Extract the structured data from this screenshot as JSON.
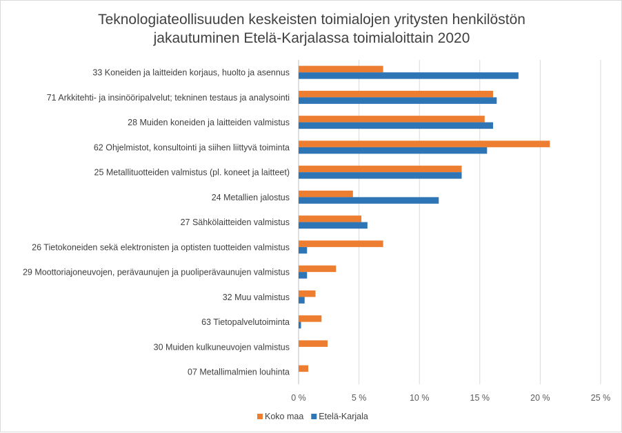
{
  "chart_data": {
    "type": "bar",
    "orientation": "horizontal",
    "title_line1": "Teknologiateollisuuden keskeisten toimialojen yritysten henkilöstön",
    "title_line2": "jakautuminen Etelä-Karjalassa toimialoittain 2020",
    "categories": [
      "33 Koneiden ja laitteiden korjaus, huolto ja asennus",
      "71 Arkkitehti- ja insinööripalvelut; tekninen testaus ja analysointi",
      "28 Muiden koneiden ja laitteiden valmistus",
      "62 Ohjelmistot, konsultointi ja siihen liittyvä toiminta",
      "25 Metallituotteiden valmistus (pl. koneet ja laitteet)",
      "24 Metallien jalostus",
      "27 Sähkölaitteiden valmistus",
      "26 Tietokoneiden sekä elektronisten ja optisten tuotteiden valmistus",
      "29 Moottoriajoneuvojen, perävaunujen ja puoliperävaunujen valmistus",
      "32 Muu valmistus",
      "63 Tietopalvelutoiminta",
      "30 Muiden kulkuneuvojen valmistus",
      "07 Metallimalmien louhinta"
    ],
    "series": [
      {
        "name": "Koko maa",
        "color": "#ED7D31",
        "values": [
          7.0,
          16.1,
          15.4,
          20.8,
          13.5,
          4.5,
          5.2,
          7.0,
          3.1,
          1.4,
          1.9,
          2.4,
          0.8
        ]
      },
      {
        "name": "Etelä-Karjala",
        "color": "#2E75B6",
        "values": [
          18.2,
          16.4,
          16.1,
          15.6,
          13.5,
          11.6,
          5.7,
          0.7,
          0.7,
          0.5,
          0.2,
          0.0,
          0.0
        ]
      }
    ],
    "xticks": [
      "0 %",
      "5 %",
      "10 %",
      "15 %",
      "20 %",
      "25 %"
    ],
    "xlim": [
      0,
      25
    ],
    "xlabel": "",
    "ylabel": "",
    "grid": true,
    "legend_position": "bottom"
  }
}
